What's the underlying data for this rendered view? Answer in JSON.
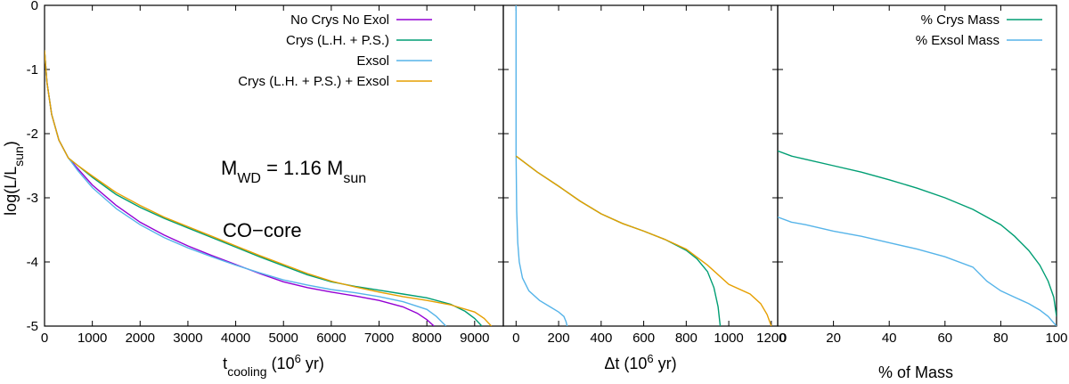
{
  "chart_data": [
    {
      "type": "line",
      "ylabel": "log(L/L",
      "ylabel_sub": "sun",
      "ylabel_close": ")",
      "xlabel": "t",
      "xlabel_sub": "cooling",
      "xlabel_rest": " (10",
      "xlabel_sup": "6",
      "xlabel_end": " yr)",
      "xlim": [
        0,
        9600
      ],
      "ylim": [
        -5,
        0
      ],
      "xticks": [
        0,
        1000,
        2000,
        3000,
        4000,
        5000,
        6000,
        7000,
        8000,
        9000
      ],
      "yticks": [
        0,
        -1,
        -2,
        -3,
        -4,
        -5
      ],
      "legend_position": "top-right",
      "annotations": {
        "mass_main": "M",
        "mass_sub": "WD",
        "mass_mid": " = 1.16 M",
        "mass_sub2": "sun",
        "core": "CO−core"
      },
      "series": [
        {
          "name": "No Crys No Exol",
          "color": "#9400d3",
          "x": [
            0,
            50,
            150,
            300,
            500,
            700,
            1000,
            1500,
            2000,
            2500,
            3000,
            3500,
            4000,
            4500,
            5000,
            5500,
            6000,
            6500,
            7000,
            7500,
            7800,
            8000,
            8150
          ],
          "y": [
            -0.7,
            -1.2,
            -1.7,
            -2.1,
            -2.38,
            -2.55,
            -2.8,
            -3.12,
            -3.38,
            -3.58,
            -3.75,
            -3.9,
            -4.04,
            -4.18,
            -4.31,
            -4.4,
            -4.47,
            -4.53,
            -4.6,
            -4.7,
            -4.8,
            -4.9,
            -5.0
          ]
        },
        {
          "name": "Crys (L.H. + P.S.)",
          "color": "#009e73",
          "x": [
            0,
            50,
            150,
            300,
            500,
            700,
            1000,
            1500,
            2000,
            2500,
            3000,
            3500,
            4000,
            4500,
            5000,
            5500,
            6000,
            6500,
            7000,
            7500,
            8000,
            8500,
            8800,
            9000,
            9150
          ],
          "y": [
            -0.7,
            -1.2,
            -1.7,
            -2.1,
            -2.38,
            -2.5,
            -2.68,
            -2.95,
            -3.15,
            -3.32,
            -3.47,
            -3.62,
            -3.77,
            -3.92,
            -4.06,
            -4.2,
            -4.31,
            -4.38,
            -4.44,
            -4.5,
            -4.56,
            -4.66,
            -4.77,
            -4.88,
            -5.0
          ]
        },
        {
          "name": "Exsol",
          "color": "#56b4e9",
          "x": [
            0,
            50,
            150,
            300,
            500,
            700,
            1000,
            1500,
            2000,
            2500,
            3000,
            3500,
            4000,
            4500,
            5000,
            5500,
            6000,
            6500,
            7000,
            7500,
            8000,
            8200,
            8400
          ],
          "y": [
            -0.7,
            -1.2,
            -1.7,
            -2.1,
            -2.38,
            -2.58,
            -2.84,
            -3.17,
            -3.42,
            -3.62,
            -3.78,
            -3.92,
            -4.05,
            -4.17,
            -4.28,
            -4.36,
            -4.43,
            -4.48,
            -4.54,
            -4.62,
            -4.74,
            -4.85,
            -5.0
          ]
        },
        {
          "name": "Crys (L.H. + P.S.) + Exsol",
          "color": "#e69f00",
          "x": [
            0,
            50,
            150,
            300,
            500,
            700,
            1000,
            1500,
            2000,
            2500,
            3000,
            3500,
            4000,
            4500,
            5000,
            5500,
            6000,
            6500,
            7000,
            7500,
            8000,
            8500,
            9000,
            9200,
            9350
          ],
          "y": [
            -0.7,
            -1.2,
            -1.7,
            -2.1,
            -2.38,
            -2.5,
            -2.66,
            -2.92,
            -3.12,
            -3.3,
            -3.45,
            -3.6,
            -3.75,
            -3.9,
            -4.04,
            -4.18,
            -4.3,
            -4.39,
            -4.47,
            -4.54,
            -4.6,
            -4.67,
            -4.78,
            -4.88,
            -5.0
          ]
        }
      ]
    },
    {
      "type": "line",
      "xlabel": "Δt (10",
      "xlabel_sup": "6",
      "xlabel_end": " yr)",
      "xlim": [
        -60,
        1230
      ],
      "ylim": [
        -5,
        0
      ],
      "xticks": [
        0,
        200,
        400,
        600,
        800,
        1000,
        1200
      ],
      "series": [
        {
          "name": "Exsol",
          "color": "#56b4e9",
          "x": [
            0,
            0,
            3,
            8,
            15,
            30,
            60,
            110,
            160,
            200,
            225,
            235,
            240
          ],
          "y": [
            0,
            -2.3,
            -3.2,
            -3.7,
            -4.0,
            -4.25,
            -4.45,
            -4.6,
            -4.7,
            -4.78,
            -4.85,
            -4.93,
            -5.0
          ]
        },
        {
          "name": "Crys (L.H. + P.S.)",
          "color": "#009e73",
          "x": [
            0,
            100,
            200,
            300,
            400,
            500,
            600,
            700,
            800,
            850,
            900,
            930,
            950,
            960
          ],
          "y": [
            -2.35,
            -2.6,
            -2.82,
            -3.05,
            -3.25,
            -3.4,
            -3.52,
            -3.65,
            -3.82,
            -3.95,
            -4.15,
            -4.4,
            -4.7,
            -5.0
          ]
        },
        {
          "name": "Crys (L.H. + P.S.) + Exsol",
          "color": "#e69f00",
          "x": [
            0,
            100,
            200,
            300,
            400,
            500,
            600,
            700,
            800,
            900,
            1000,
            1100,
            1150,
            1180,
            1200
          ],
          "y": [
            -2.35,
            -2.6,
            -2.82,
            -3.05,
            -3.25,
            -3.4,
            -3.52,
            -3.65,
            -3.8,
            -4.05,
            -4.35,
            -4.5,
            -4.65,
            -4.82,
            -5.0
          ]
        }
      ]
    },
    {
      "type": "line",
      "xlabel": "% of Mass",
      "xlim": [
        0,
        100
      ],
      "ylim": [
        -5,
        0
      ],
      "xticks": [
        20,
        40,
        60,
        80,
        100
      ],
      "xtick_first": "0",
      "legend_position": "top-right",
      "series": [
        {
          "name": "% Crys Mass",
          "color": "#009e73",
          "x": [
            0,
            5,
            10,
            20,
            30,
            40,
            50,
            60,
            70,
            80,
            85,
            90,
            94,
            97,
            99,
            100
          ],
          "y": [
            -2.27,
            -2.35,
            -2.4,
            -2.5,
            -2.6,
            -2.72,
            -2.85,
            -3.0,
            -3.18,
            -3.42,
            -3.6,
            -3.82,
            -4.05,
            -4.3,
            -4.55,
            -4.85
          ]
        },
        {
          "name": "% Exsol Mass",
          "color": "#56b4e9",
          "x": [
            0,
            5,
            10,
            20,
            30,
            40,
            50,
            60,
            70,
            75,
            80,
            85,
            90,
            94,
            97,
            99,
            100
          ],
          "y": [
            -3.3,
            -3.38,
            -3.42,
            -3.52,
            -3.6,
            -3.7,
            -3.8,
            -3.92,
            -4.08,
            -4.3,
            -4.45,
            -4.55,
            -4.65,
            -4.75,
            -4.85,
            -4.95,
            -5.0
          ]
        }
      ]
    }
  ]
}
